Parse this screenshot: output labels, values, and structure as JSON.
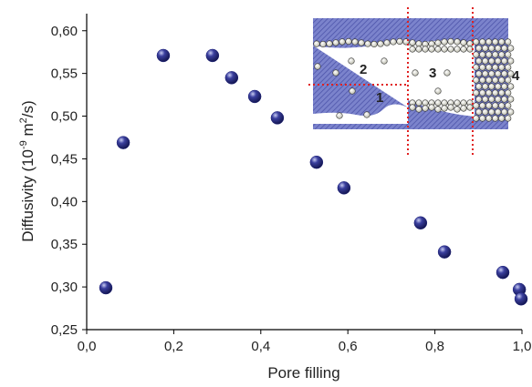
{
  "chart_data": {
    "type": "scatter",
    "x_label": "Pore filling",
    "y_label_parts": [
      "Diffusivity (10",
      "-9",
      " m",
      "2",
      "/s)"
    ],
    "x": [
      0.044,
      0.084,
      0.176,
      0.289,
      0.333,
      0.386,
      0.438,
      0.528,
      0.591,
      0.767,
      0.822,
      0.956,
      0.994,
      0.998
    ],
    "series": [
      {
        "color": "#1f237a",
        "values": [
          0.299,
          0.469,
          0.571,
          0.571,
          0.545,
          0.523,
          0.498,
          0.446,
          0.416,
          0.375,
          0.341,
          0.317,
          0.297,
          0.286
        ]
      }
    ],
    "xlim": [
      0,
      1.0
    ],
    "ylim": [
      0.25,
      0.62
    ],
    "xticks": [
      {
        "value": 0,
        "label": "0,0"
      },
      {
        "value": 0.2,
        "label": "0,2"
      },
      {
        "value": 0.4,
        "label": "0,4"
      },
      {
        "value": 0.6,
        "label": "0,6"
      },
      {
        "value": 0.8,
        "label": "0,8"
      },
      {
        "value": 1.0,
        "label": "1,0"
      }
    ],
    "yticks": [
      {
        "value": 0.25,
        "label": "0,25"
      },
      {
        "value": 0.3,
        "label": "0,30"
      },
      {
        "value": 0.35,
        "label": "0,35"
      },
      {
        "value": 0.4,
        "label": "0,40"
      },
      {
        "value": 0.45,
        "label": "0,45"
      },
      {
        "value": 0.5,
        "label": "0,50"
      },
      {
        "value": 0.55,
        "label": "0,55"
      },
      {
        "value": 0.6,
        "label": "0,60"
      }
    ],
    "inset": {
      "labels": [
        "1",
        "2",
        "3",
        "4"
      ]
    }
  }
}
